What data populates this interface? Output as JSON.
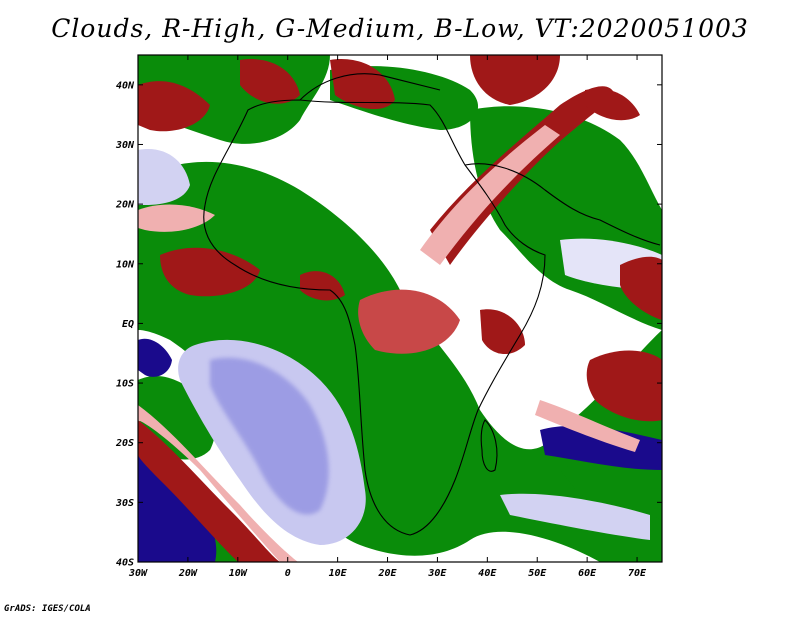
{
  "title": "Clouds, R-High, G-Medium, B-Low, VT:2020051003",
  "credit": "GrADS: IGES/COLA",
  "map": {
    "lon_range": [
      -30,
      75
    ],
    "lat_range": [
      -40,
      45
    ],
    "lat_ticks": [
      "40N",
      "30N",
      "20N",
      "10N",
      "EQ",
      "10S",
      "20S",
      "30S",
      "40S"
    ],
    "lon_ticks": [
      "30W",
      "20W",
      "10W",
      "0",
      "10E",
      "20E",
      "30E",
      "40E",
      "50E",
      "60E",
      "70E"
    ],
    "layers": {
      "high_cloud": {
        "label": "R-High",
        "color": "#a01818"
      },
      "medium_cloud": {
        "label": "G-Medium",
        "color": "#0a8c0a"
      },
      "low_cloud": {
        "label": "B-Low",
        "color": "#1a0a8c"
      }
    }
  }
}
